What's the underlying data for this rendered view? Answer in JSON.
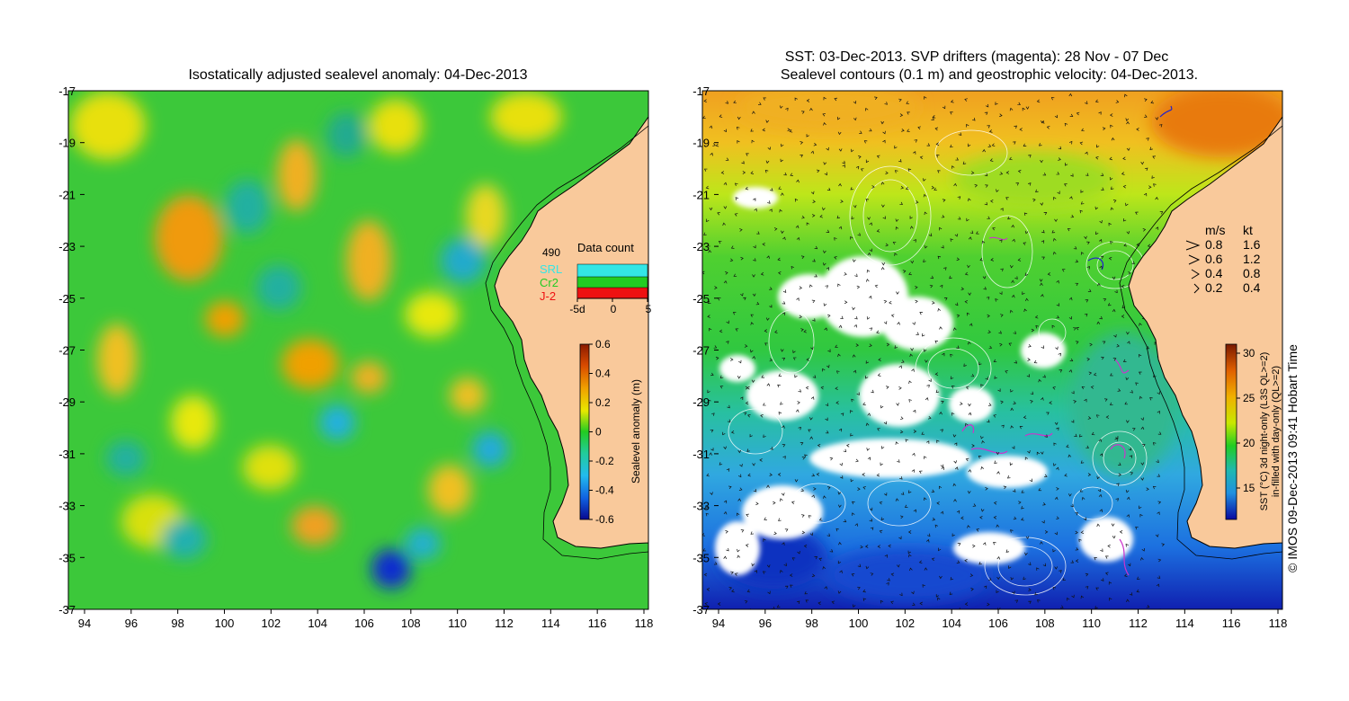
{
  "left_panel": {
    "title": "Isostatically adjusted sealevel anomaly: 04-Dec-2013",
    "x_ticks": [
      "94",
      "96",
      "98",
      "100",
      "102",
      "104",
      "106",
      "108",
      "110",
      "112",
      "114",
      "116",
      "118"
    ],
    "y_ticks": [
      "-17",
      "-19",
      "-21",
      "-23",
      "-25",
      "-27",
      "-29",
      "-31",
      "-33",
      "-35",
      "-37"
    ],
    "data_count": {
      "title": "Data count",
      "total": "490",
      "series": [
        {
          "name": "SRL",
          "color": "#33e6e6"
        },
        {
          "name": "Cr2",
          "color": "#22cc22"
        },
        {
          "name": "J-2",
          "color": "#ee1111"
        }
      ],
      "x_ticks": [
        "-5d",
        "0",
        "5"
      ]
    },
    "colorbar": {
      "label": "Sealevel anomaly (m)",
      "ticks": [
        "0.6",
        "0.4",
        "0.2",
        "0",
        "-0.2",
        "-0.4",
        "-0.6"
      ]
    }
  },
  "right_panel": {
    "title_line1": "SST: 03-Dec-2013. SVP drifters (magenta): 28 Nov - 07 Dec",
    "title_line2": "Sealevel contours (0.1 m) and geostrophic velocity: 04-Dec-2013.",
    "x_ticks": [
      "94",
      "96",
      "98",
      "100",
      "102",
      "104",
      "106",
      "108",
      "110",
      "112",
      "114",
      "116",
      "118"
    ],
    "y_ticks": [
      "-17",
      "-19",
      "-21",
      "-23",
      "-25",
      "-27",
      "-29",
      "-31",
      "-33",
      "-35",
      "-37"
    ],
    "velocity_legend": {
      "header_ms": "m/s",
      "header_kt": "kt",
      "rows": [
        {
          "ms": "0.8",
          "kt": "1.6"
        },
        {
          "ms": "0.6",
          "kt": "1.2"
        },
        {
          "ms": "0.4",
          "kt": "0.8"
        },
        {
          "ms": "0.2",
          "kt": "0.4"
        }
      ]
    },
    "colorbar": {
      "label_line1": "SST (°C) 3d night-only (L3S QL>=2)",
      "label_line2": "in-filled with day-only (QL>=2)",
      "ticks": [
        "30",
        "25",
        "20",
        "15"
      ]
    }
  },
  "credit": "© IMOS 09-Dec-2013 09:41 Hobart Time",
  "colors": {
    "land": "#f9c99b",
    "coast": "#000000",
    "contour": "#ffffff",
    "drifter": "#cc33cc"
  }
}
